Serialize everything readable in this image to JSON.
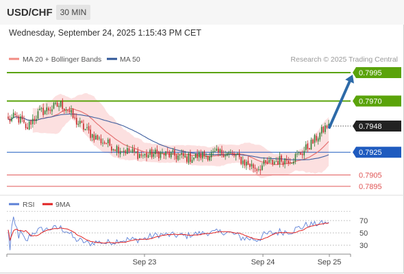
{
  "header": {
    "symbol": "USD/CHF",
    "timeframe": "30 MIN",
    "datetime": "Wednesday, September 24, 2025 1:15:43 PM CET"
  },
  "legend": {
    "ma20_label": "MA 20 + Bollinger Bands",
    "ma50_label": "MA 50",
    "credit": "Research © 2025 Trading Central"
  },
  "rsi_legend": {
    "rsi_label": "RSI",
    "ma_label": "9MA"
  },
  "colors": {
    "candle_up": "#2e7d32",
    "candle_down": "#c62828",
    "ma20": "#e57373",
    "bollinger_fill": "#fbd5d5",
    "ma50": "#3f5f9f",
    "resistance": "#5aa30a",
    "pivot": "#1f5bbf",
    "support": "#e05555",
    "current": "#222222",
    "arrow": "#2d6aa8",
    "rsi_line": "#5b7fd6",
    "rsi_ma": "#e02020"
  },
  "chart_data": [
    {
      "type": "candlestick",
      "title": "USD/CHF 30 MIN",
      "ylim": [
        0.7885,
        0.8003
      ],
      "x_labels": [
        "Sep 23",
        "Sep 24",
        "Sep 25"
      ],
      "levels": [
        {
          "value": 0.7995,
          "label": "0.7995",
          "kind": "resistance",
          "style": "box"
        },
        {
          "value": 0.797,
          "label": "0.7970",
          "kind": "resistance",
          "style": "box"
        },
        {
          "value": 0.7948,
          "label": "0.7948",
          "kind": "current",
          "style": "box"
        },
        {
          "value": 0.7925,
          "label": "0.7925",
          "kind": "pivot",
          "style": "box"
        },
        {
          "value": 0.7905,
          "label": "0.7905",
          "kind": "support",
          "style": "text"
        },
        {
          "value": 0.7895,
          "label": "0.7895",
          "kind": "support",
          "style": "text"
        }
      ],
      "anchors": [
        [
          0,
          0.7953
        ],
        [
          4,
          0.7956
        ],
        [
          8,
          0.7952
        ],
        [
          10,
          0.7944
        ],
        [
          13,
          0.7952
        ],
        [
          18,
          0.796
        ],
        [
          25,
          0.7964
        ],
        [
          30,
          0.7967
        ],
        [
          34,
          0.7963
        ],
        [
          38,
          0.7953
        ],
        [
          42,
          0.7948
        ],
        [
          47,
          0.7941
        ],
        [
          53,
          0.7935
        ],
        [
          60,
          0.793
        ],
        [
          68,
          0.7926
        ],
        [
          77,
          0.7922
        ],
        [
          86,
          0.7924
        ],
        [
          95,
          0.7922
        ],
        [
          103,
          0.792
        ],
        [
          110,
          0.7922
        ],
        [
          117,
          0.7923
        ],
        [
          123,
          0.7925
        ],
        [
          129,
          0.7922
        ],
        [
          136,
          0.7915
        ],
        [
          142,
          0.7911
        ],
        [
          148,
          0.7915
        ],
        [
          155,
          0.7918
        ],
        [
          162,
          0.7919
        ],
        [
          168,
          0.7925
        ],
        [
          174,
          0.7934
        ],
        [
          179,
          0.7943
        ],
        [
          183,
          0.795
        ]
      ],
      "forecast_target": 0.7995
    },
    {
      "type": "line",
      "title": "RSI",
      "ylim": [
        20,
        85
      ],
      "yticks": [
        70,
        50,
        30
      ],
      "x_labels": [
        "Sep 23",
        "Sep 24",
        "Sep 25"
      ]
    }
  ]
}
